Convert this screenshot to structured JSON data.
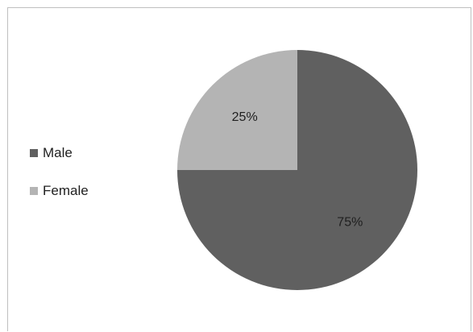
{
  "chart_data": {
    "type": "pie",
    "title": "",
    "categories": [
      "Male",
      "Female"
    ],
    "values": [
      75,
      25
    ],
    "data_labels": [
      "75%",
      "25%"
    ],
    "colors": [
      "#606060",
      "#b4b4b4"
    ],
    "legend_position": "left"
  },
  "legend": {
    "items": [
      {
        "label": "Male",
        "color": "#606060"
      },
      {
        "label": "Female",
        "color": "#b4b4b4"
      }
    ]
  }
}
